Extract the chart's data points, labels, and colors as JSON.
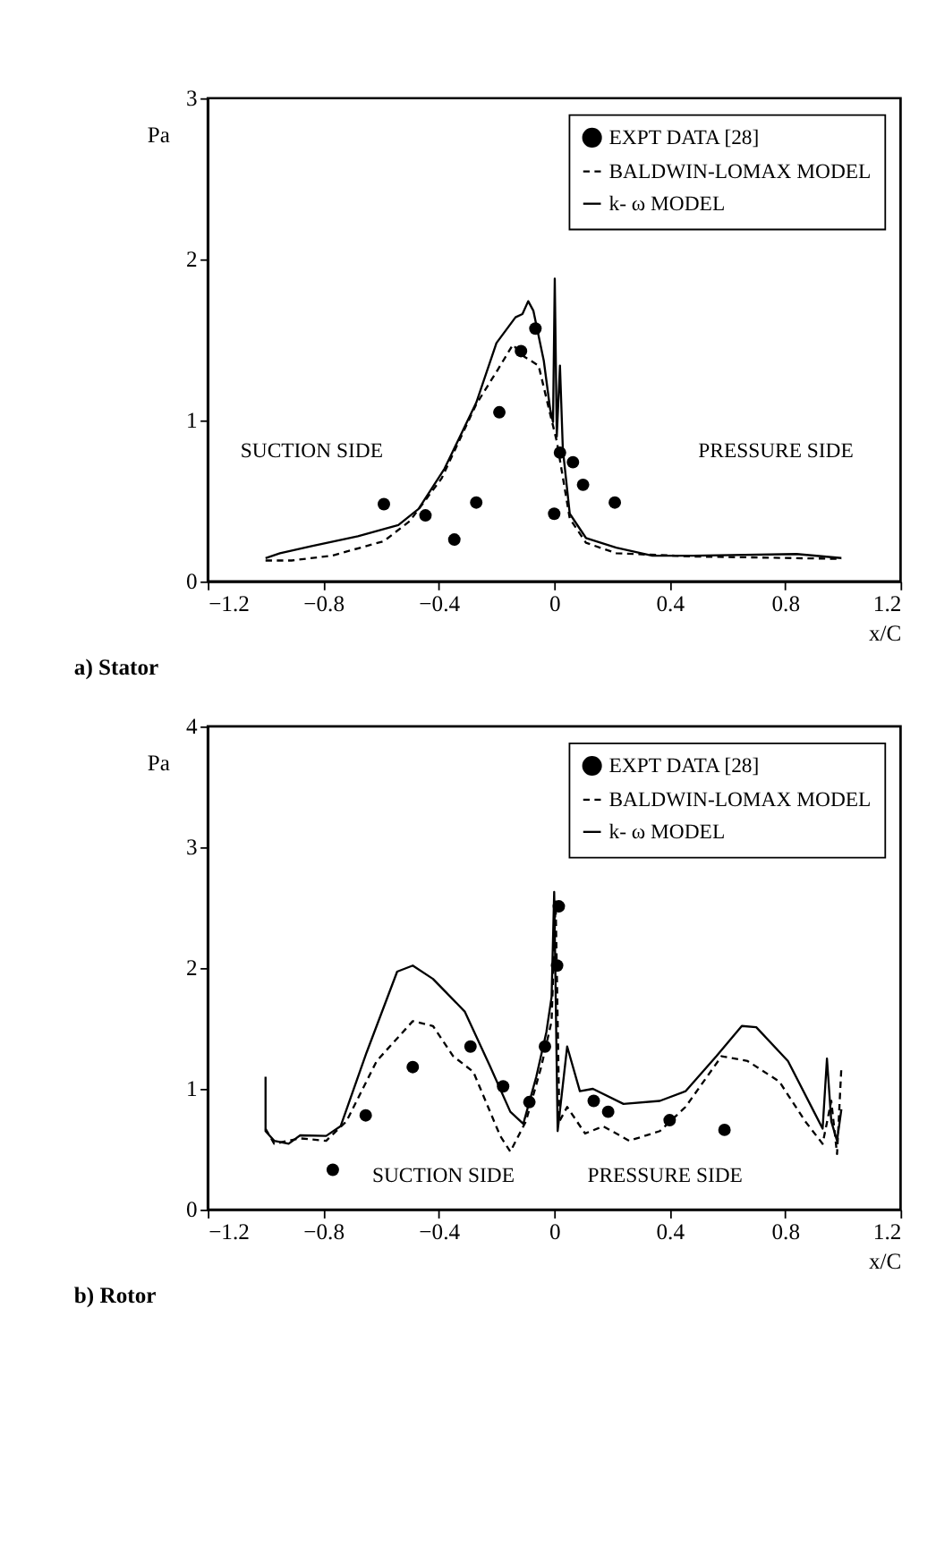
{
  "chart_data": [
    {
      "type": "line",
      "title": "a) Stator",
      "xlabel": "x/C",
      "ylabel": "Pa",
      "xlim": [
        -1.2,
        1.2
      ],
      "xticks": [
        -1.2,
        -0.8,
        -0.4,
        0,
        0.4,
        0.8,
        1.2
      ],
      "ylim": [
        0,
        3
      ],
      "yticks": [
        0,
        1,
        2,
        3
      ],
      "grid": false,
      "legend": "top right",
      "annotations": [
        "SUCTION SIDE",
        "PRESSURE SIDE"
      ],
      "series": [
        {
          "name": "EXPT DATA [28]",
          "type": "scatter",
          "marker": "circle",
          "color": "#000000",
          "x": [
            -0.59,
            -0.446,
            -0.346,
            -0.27,
            -0.19,
            -0.115,
            -0.065,
            0.0,
            0.02,
            0.065,
            0.1,
            0.21
          ],
          "values": [
            0.48,
            0.41,
            0.26,
            0.49,
            1.05,
            1.43,
            1.57,
            0.42,
            0.8,
            0.74,
            0.6,
            0.49
          ]
        },
        {
          "name": "BALDWIN-LOMAX MODEL",
          "type": "line",
          "line_style": "dashed",
          "color": "#000000",
          "x": [
            -1.0,
            -0.91,
            -0.77,
            -0.59,
            -0.5,
            -0.39,
            -0.27,
            -0.197,
            -0.143,
            -0.108,
            -0.054,
            -0.018,
            0.009,
            0.054,
            0.11,
            0.215,
            0.48,
            0.995
          ],
          "values": [
            0.13,
            0.13,
            0.16,
            0.25,
            0.375,
            0.64,
            1.1,
            1.31,
            1.47,
            1.4,
            1.34,
            1.07,
            0.87,
            0.39,
            0.24,
            0.175,
            0.155,
            0.14
          ]
        },
        {
          "name": "k- ω  MODEL",
          "type": "line",
          "line_style": "solid",
          "color": "#000000",
          "x": [
            -1.0,
            -0.95,
            -0.84,
            -0.68,
            -0.54,
            -0.47,
            -0.38,
            -0.27,
            -0.2,
            -0.134,
            -0.11,
            -0.09,
            -0.072,
            -0.036,
            -0.014,
            -0.004,
            0.002,
            0.009,
            0.02,
            0.03,
            0.054,
            0.11,
            0.215,
            0.34,
            0.48,
            0.84,
            0.995
          ],
          "values": [
            0.145,
            0.175,
            0.22,
            0.28,
            0.35,
            0.45,
            0.7,
            1.11,
            1.48,
            1.64,
            1.66,
            1.74,
            1.68,
            1.37,
            1.07,
            0.99,
            1.88,
            0.9,
            1.34,
            0.82,
            0.42,
            0.27,
            0.21,
            0.16,
            0.16,
            0.17,
            0.145
          ]
        }
      ]
    },
    {
      "type": "line",
      "title": "b) Rotor",
      "xlabel": "x/C",
      "ylabel": "Pa",
      "xlim": [
        -1.2,
        1.2
      ],
      "xticks": [
        -1.2,
        -0.8,
        -0.4,
        0,
        0.4,
        0.8,
        1.2
      ],
      "ylim": [
        0,
        4
      ],
      "yticks": [
        0,
        1,
        2,
        3,
        4
      ],
      "grid": false,
      "legend": "top right",
      "annotations": [
        "SUCTION SIDE",
        "PRESSURE SIDE"
      ],
      "series": [
        {
          "name": "EXPT DATA [28]",
          "type": "scatter",
          "marker": "circle",
          "color": "#000000",
          "x": [
            -0.767,
            -0.653,
            -0.49,
            -0.29,
            -0.177,
            -0.086,
            -0.032,
            0.01,
            0.016,
            0.137,
            0.187,
            0.4,
            0.59
          ],
          "values": [
            0.33,
            0.78,
            1.18,
            1.35,
            1.02,
            0.89,
            1.35,
            2.02,
            2.51,
            0.9,
            0.81,
            0.74,
            0.66
          ]
        },
        {
          "name": "BALDWIN-LOMAX MODEL",
          "type": "line",
          "line_style": "dashed",
          "color": "#000000",
          "x": [
            -1.0,
            -0.97,
            -0.88,
            -0.79,
            -0.72,
            -0.615,
            -0.49,
            -0.42,
            -0.35,
            -0.28,
            -0.187,
            -0.152,
            -0.098,
            -0.045,
            -0.009,
            0.005,
            0.018,
            0.045,
            0.107,
            0.17,
            0.26,
            0.366,
            0.455,
            0.58,
            0.67,
            0.78,
            0.87,
            0.93,
            0.96,
            0.98,
            0.995
          ],
          "values": [
            0.67,
            0.545,
            0.59,
            0.57,
            0.73,
            1.23,
            1.56,
            1.52,
            1.27,
            1.14,
            0.61,
            0.48,
            0.73,
            1.18,
            1.56,
            2.55,
            0.73,
            0.85,
            0.63,
            0.69,
            0.57,
            0.65,
            0.85,
            1.27,
            1.23,
            1.06,
            0.73,
            0.545,
            0.9,
            0.46,
            1.18
          ]
        },
        {
          "name": "k- ω  MODEL",
          "type": "line",
          "line_style": "solid",
          "color": "#000000",
          "x": [
            -1.0,
            -1.0,
            -0.97,
            -0.92,
            -0.88,
            -0.79,
            -0.74,
            -0.65,
            -0.544,
            -0.49,
            -0.42,
            -0.31,
            -0.223,
            -0.152,
            -0.107,
            -0.062,
            -0.027,
            -0.009,
            0.0,
            0.012,
            0.045,
            0.089,
            0.134,
            0.24,
            0.366,
            0.455,
            0.562,
            0.65,
            0.7,
            0.81,
            0.9,
            0.93,
            0.945,
            0.96,
            0.98,
            0.995
          ],
          "values": [
            1.1,
            0.65,
            0.57,
            0.545,
            0.615,
            0.61,
            0.69,
            1.3,
            1.97,
            2.02,
            1.91,
            1.64,
            1.19,
            0.81,
            0.71,
            1.1,
            1.47,
            1.76,
            2.63,
            0.65,
            1.35,
            0.98,
            1.0,
            0.875,
            0.9,
            0.98,
            1.27,
            1.52,
            1.51,
            1.23,
            0.81,
            0.67,
            1.25,
            0.73,
            0.57,
            0.83
          ]
        }
      ]
    }
  ]
}
